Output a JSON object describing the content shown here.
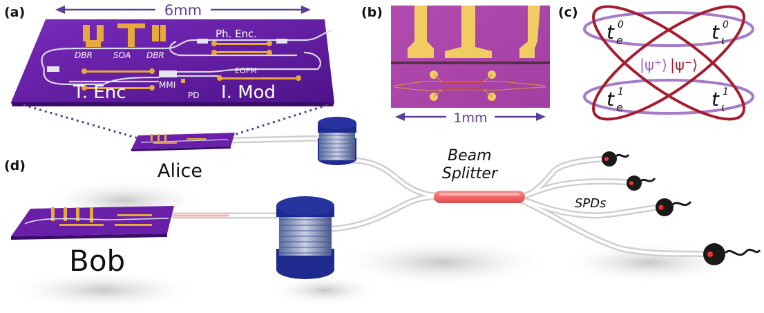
{
  "panels": {
    "a": "(a)",
    "b": "(b)",
    "c": "(c)",
    "d": "(d)"
  },
  "chip_a": {
    "scale": "6mm",
    "labels": {
      "dbr1": "DBR",
      "soa": "SOA",
      "dbr2": "DBR",
      "ph_enc": "Ph. Enc.",
      "eopm": "EOPM",
      "t_enc": "T. Enc",
      "mmi": "MMI",
      "pd": "PD",
      "i_mod": "I. Mod"
    }
  },
  "chip_b": {
    "scale": "1mm"
  },
  "bell_c": {
    "te0": "t",
    "te0_sub": "e",
    "te0_sup": "0",
    "tl0": "t",
    "tl0_sub": "ι",
    "tl0_sup": "0",
    "te1": "t",
    "te1_sub": "e",
    "te1_sup": "1",
    "tl1": "t",
    "tl1_sub": "ι",
    "tl1_sup": "1",
    "psi_plus": "|ψ⁺⟩",
    "psi_minus": "|ψ⁻⟩"
  },
  "setup_d": {
    "alice": "Alice",
    "bob": "Bob",
    "beam_splitter_1": "Beam",
    "beam_splitter_2": "Splitter",
    "spds": "SPDs"
  },
  "colors": {
    "chip_purple": "#6a1fa8",
    "gold": "#e6a93a",
    "scale_purple": "#5c3d99",
    "bell_purple": "#a67ac9",
    "bell_red": "#a61c2c",
    "spool_blue": "#1f2a8f",
    "splitter_red": "#ee5a5a"
  }
}
